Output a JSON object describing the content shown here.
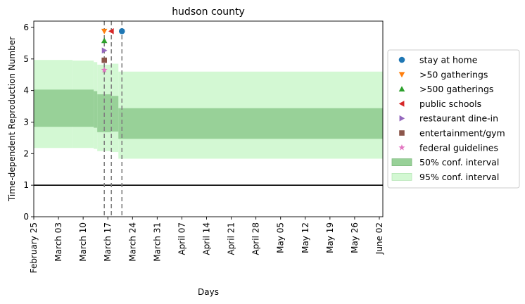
{
  "chart_data": {
    "type": "line",
    "title": "hudson county",
    "xlabel": "Days",
    "ylabel": "Time-dependent Reproduction Number",
    "x_ticks": [
      {
        "date": "2020-02-25",
        "label": "February 25"
      },
      {
        "date": "2020-03-03",
        "label": "March 03"
      },
      {
        "date": "2020-03-10",
        "label": "March 10"
      },
      {
        "date": "2020-03-17",
        "label": "March 17"
      },
      {
        "date": "2020-03-24",
        "label": "March 24"
      },
      {
        "date": "2020-03-31",
        "label": "March 31"
      },
      {
        "date": "2020-04-07",
        "label": "April 07"
      },
      {
        "date": "2020-04-14",
        "label": "April 14"
      },
      {
        "date": "2020-04-21",
        "label": "April 21"
      },
      {
        "date": "2020-04-28",
        "label": "April 28"
      },
      {
        "date": "2020-05-05",
        "label": "May 05"
      },
      {
        "date": "2020-05-12",
        "label": "May 12"
      },
      {
        "date": "2020-05-19",
        "label": "May 19"
      },
      {
        "date": "2020-05-26",
        "label": "May 26"
      },
      {
        "date": "2020-06-02",
        "label": "June 02"
      }
    ],
    "xlim": [
      "2020-02-25",
      "2020-06-03"
    ],
    "y_ticks": [
      0,
      1,
      2,
      3,
      4,
      5,
      6
    ],
    "ylim": [
      0,
      6.2
    ],
    "reference_line_y": 1,
    "vertical_lines": [
      "2020-03-16",
      "2020-03-18",
      "2020-03-21"
    ],
    "ci95": [
      {
        "from": "2020-02-25",
        "to": "2020-03-07",
        "low": 2.18,
        "high": 4.97
      },
      {
        "from": "2020-03-07",
        "to": "2020-03-13",
        "low": 2.18,
        "high": 4.95
      },
      {
        "from": "2020-03-13",
        "to": "2020-03-14",
        "low": 2.15,
        "high": 4.9
      },
      {
        "from": "2020-03-14",
        "to": "2020-03-18",
        "low": 2.08,
        "high": 4.82
      },
      {
        "from": "2020-03-18",
        "to": "2020-03-20",
        "low": 2.05,
        "high": 4.85
      },
      {
        "from": "2020-03-20",
        "to": "2020-06-03",
        "low": 1.84,
        "high": 4.6
      }
    ],
    "ci50": [
      {
        "from": "2020-02-25",
        "to": "2020-03-13",
        "low": 2.85,
        "high": 4.03
      },
      {
        "from": "2020-03-13",
        "to": "2020-03-14",
        "low": 2.82,
        "high": 3.98
      },
      {
        "from": "2020-03-14",
        "to": "2020-03-18",
        "low": 2.68,
        "high": 3.88
      },
      {
        "from": "2020-03-18",
        "to": "2020-03-20",
        "low": 2.7,
        "high": 3.83
      },
      {
        "from": "2020-03-20",
        "to": "2020-06-03",
        "low": 2.47,
        "high": 3.44
      }
    ],
    "markers": [
      {
        "name": "stay at home",
        "date": "2020-03-21",
        "y": 5.88,
        "color": "#1f77b4",
        "shape": "circle"
      },
      {
        "name": ">50 gatherings",
        "date": "2020-03-16",
        "y": 5.88,
        "color": "#ff7f0e",
        "shape": "triangle-down"
      },
      {
        "name": ">500 gatherings",
        "date": "2020-03-16",
        "y": 5.58,
        "color": "#2ca02c",
        "shape": "triangle-up"
      },
      {
        "name": "public schools",
        "date": "2020-03-18",
        "y": 5.88,
        "color": "#d62728",
        "shape": "triangle-left"
      },
      {
        "name": "restaurant dine-in",
        "date": "2020-03-16",
        "y": 5.27,
        "color": "#9467bd",
        "shape": "triangle-right"
      },
      {
        "name": "entertainment/gym",
        "date": "2020-03-16",
        "y": 4.96,
        "color": "#8c564b",
        "shape": "square"
      },
      {
        "name": "federal guidelines",
        "date": "2020-03-16",
        "y": 4.65,
        "color": "#e377c2",
        "shape": "star"
      }
    ],
    "legend": {
      "placement": "right-outside",
      "entries": [
        {
          "label": "stay at home",
          "kind": "marker",
          "ref": 0
        },
        {
          "label": ">50 gatherings",
          "kind": "marker",
          "ref": 1
        },
        {
          "label": ">500 gatherings",
          "kind": "marker",
          "ref": 2
        },
        {
          "label": "public schools",
          "kind": "marker",
          "ref": 3
        },
        {
          "label": "restaurant dine-in",
          "kind": "marker",
          "ref": 4
        },
        {
          "label": "entertainment/gym",
          "kind": "marker",
          "ref": 5
        },
        {
          "label": "federal guidelines",
          "kind": "marker",
          "ref": 6
        },
        {
          "label": "50% conf. interval",
          "kind": "patch",
          "color": "#98d198",
          "edge": "#7fb97f"
        },
        {
          "label": "95% conf. interval",
          "kind": "patch",
          "color": "#d3f8d3",
          "edge": "#b8e6b8"
        }
      ]
    },
    "colors": {
      "ci50": "#98d198",
      "ci95": "#d3f8d3",
      "reference_line": "#000000",
      "vertical_lines": "#808080"
    },
    "grid": false
  }
}
